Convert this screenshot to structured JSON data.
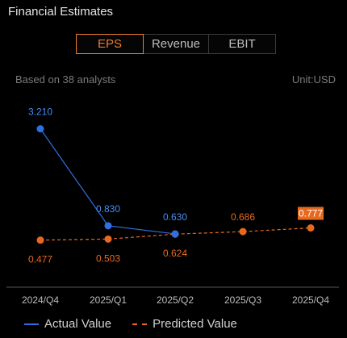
{
  "header": {
    "title": "Financial Estimates"
  },
  "tabs": [
    {
      "label": "EPS",
      "active": true
    },
    {
      "label": "Revenue",
      "active": false
    },
    {
      "label": "EBIT",
      "active": false
    }
  ],
  "subtitle": {
    "analysts": "Based on 38 analysts",
    "unit": "Unit:USD"
  },
  "colors": {
    "actual": "#2f6fe0",
    "actual_label": "#4a8cf0",
    "predicted": "#e8691e",
    "predicted_label": "#e8691e",
    "accent": "#f07d2a",
    "axis": "#555555"
  },
  "chart_data": {
    "type": "line",
    "categories": [
      "2024/Q4",
      "2025/Q1",
      "2025/Q2",
      "2025/Q3",
      "2025/Q4"
    ],
    "series": [
      {
        "name": "Actual Value",
        "values": [
          3.21,
          0.83,
          0.63,
          null,
          null
        ],
        "labels": [
          "3.210",
          "0.830",
          "0.630",
          "",
          ""
        ]
      },
      {
        "name": "Predicted Value",
        "values": [
          0.477,
          0.503,
          0.624,
          0.686,
          0.777
        ],
        "labels": [
          "0.477",
          "0.503",
          "0.624",
          "0.686",
          "0.777"
        ]
      }
    ],
    "highlighted_label": "0.777",
    "ylim": [
      0,
      3.5
    ]
  },
  "legend": {
    "actual_label": "Actual Value",
    "predicted_label": "Predicted Value"
  }
}
